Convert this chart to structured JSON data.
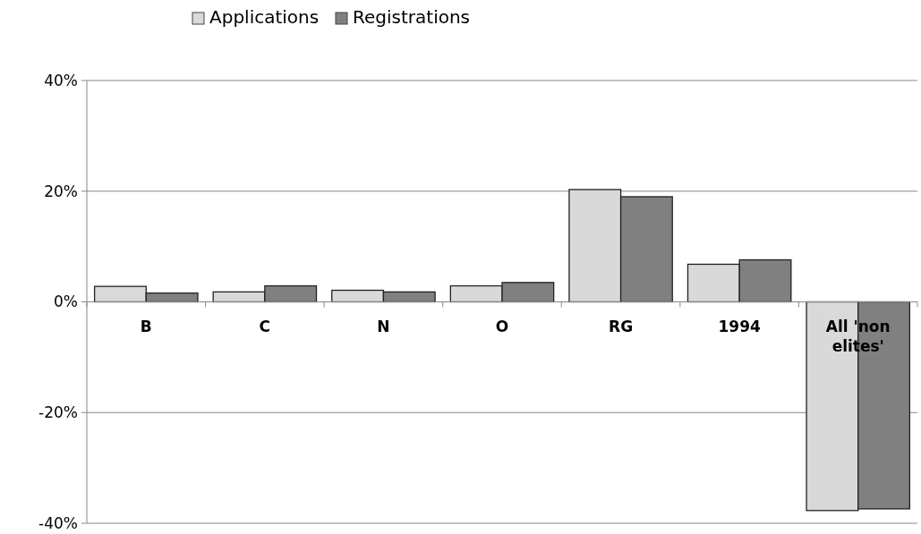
{
  "chart_data": {
    "type": "bar",
    "categories": [
      "B",
      "C",
      "N",
      "O",
      "RG",
      "1994",
      "All 'non elites'"
    ],
    "series": [
      {
        "name": "Applications",
        "color": "#d9d9d9",
        "values": [
          2.8,
          1.8,
          2.1,
          2.9,
          20.3,
          6.8,
          -37.7
        ]
      },
      {
        "name": "Registrations",
        "color": "#808080",
        "values": [
          1.6,
          2.9,
          1.8,
          3.5,
          19.0,
          7.6,
          -37.4
        ]
      }
    ],
    "ylim": [
      -40,
      40
    ],
    "yticks": [
      {
        "value": -40,
        "label": "-40%"
      },
      {
        "value": -20,
        "label": "-20%"
      },
      {
        "value": 0,
        "label": "0%"
      },
      {
        "value": 20,
        "label": "20%"
      },
      {
        "value": 40,
        "label": "40%"
      }
    ],
    "grid": "y",
    "legend": "top left"
  }
}
